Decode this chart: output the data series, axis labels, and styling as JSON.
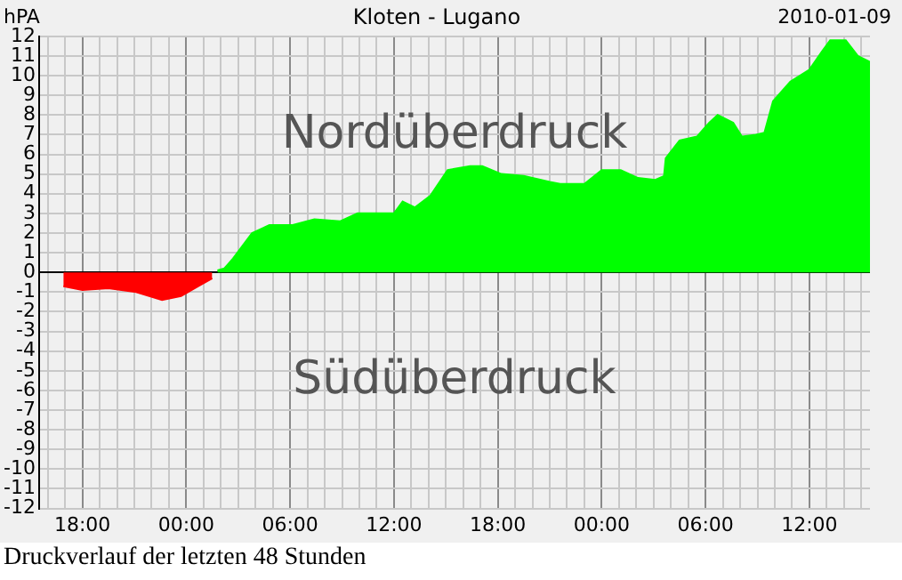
{
  "chart_data": {
    "type": "area",
    "title": "Kloten - Lugano",
    "ylabel": "hPA",
    "annotations": [
      "2010-01-09",
      "Nordüberdruck",
      "Südüberdruck",
      "Druckverlauf der letzten 48 Stunden"
    ],
    "series": [
      {
        "color": "#ff0000",
        "x": [
          "2010-01-07T16:54",
          "2010-01-07T18:00",
          "2010-01-07T19:30",
          "2010-01-07T21:06",
          "2010-01-07T22:36",
          "2010-01-07T23:42",
          "2010-01-08T00:42",
          "2010-01-08T01:30"
        ],
        "values": [
          -0.7,
          -0.9,
          -0.8,
          -1.0,
          -1.4,
          -1.2,
          -0.7,
          -0.3
        ]
      },
      {
        "color": "#00ff00",
        "x": [
          "2010-01-08T01:48",
          "2010-01-08T02:12",
          "2010-01-08T02:42",
          "2010-01-08T03:48",
          "2010-01-08T04:48",
          "2010-01-08T06:06",
          "2010-01-08T07:24",
          "2010-01-08T08:54",
          "2010-01-08T09:54",
          "2010-01-08T12:00",
          "2010-01-08T12:30",
          "2010-01-08T13:12",
          "2010-01-08T14:06",
          "2010-01-08T15:06",
          "2010-01-08T16:24",
          "2010-01-08T17:06",
          "2010-01-08T18:12",
          "2010-01-08T19:30",
          "2010-01-08T21:00",
          "2010-01-08T21:36",
          "2010-01-08T23:00",
          "2010-01-09T00:00",
          "2010-01-09T01:06",
          "2010-01-09T02:06",
          "2010-01-09T03:06",
          "2010-01-09T03:36",
          "2010-01-09T03:42",
          "2010-01-09T04:30",
          "2010-01-09T05:30",
          "2010-01-09T06:12",
          "2010-01-09T06:42",
          "2010-01-09T07:36",
          "2010-01-09T08:06",
          "2010-01-09T08:54",
          "2010-01-09T09:24",
          "2010-01-09T09:54",
          "2010-01-09T10:54",
          "2010-01-09T12:00",
          "2010-01-09T12:42",
          "2010-01-09T13:12",
          "2010-01-09T14:06",
          "2010-01-09T14:48",
          "2010-01-09T15:30"
        ],
        "values": [
          0.1,
          0.2,
          0.7,
          2.0,
          2.4,
          2.4,
          2.7,
          2.6,
          3.0,
          3.0,
          3.6,
          3.3,
          3.9,
          5.2,
          5.4,
          5.4,
          5.0,
          4.9,
          4.6,
          4.5,
          4.5,
          5.2,
          5.2,
          4.8,
          4.7,
          4.9,
          5.8,
          6.7,
          6.9,
          7.6,
          8.0,
          7.6,
          6.9,
          7.0,
          7.1,
          8.7,
          9.7,
          10.3,
          11.2,
          11.8,
          11.8,
          11.0,
          10.7
        ]
      }
    ],
    "xlim": [
      "2010-01-07T15:30",
      "2010-01-09T15:30"
    ],
    "xticks": [
      {
        "value": "2010-01-07T16:00",
        "label": null
      },
      {
        "value": "2010-01-07T17:00",
        "label": null
      },
      {
        "value": "2010-01-07T18:00",
        "label": "18:00"
      },
      {
        "value": "2010-01-07T19:00",
        "label": null
      },
      {
        "value": "2010-01-07T20:00",
        "label": null
      },
      {
        "value": "2010-01-07T21:00",
        "label": null
      },
      {
        "value": "2010-01-07T22:00",
        "label": null
      },
      {
        "value": "2010-01-07T23:00",
        "label": null
      },
      {
        "value": "2010-01-08T00:00",
        "label": "00:00"
      },
      {
        "value": "2010-01-08T01:00",
        "label": null
      },
      {
        "value": "2010-01-08T02:00",
        "label": null
      },
      {
        "value": "2010-01-08T03:00",
        "label": null
      },
      {
        "value": "2010-01-08T04:00",
        "label": null
      },
      {
        "value": "2010-01-08T05:00",
        "label": null
      },
      {
        "value": "2010-01-08T06:00",
        "label": "06:00"
      },
      {
        "value": "2010-01-08T07:00",
        "label": null
      },
      {
        "value": "2010-01-08T08:00",
        "label": null
      },
      {
        "value": "2010-01-08T09:00",
        "label": null
      },
      {
        "value": "2010-01-08T10:00",
        "label": null
      },
      {
        "value": "2010-01-08T11:00",
        "label": null
      },
      {
        "value": "2010-01-08T12:00",
        "label": "12:00"
      },
      {
        "value": "2010-01-08T13:00",
        "label": null
      },
      {
        "value": "2010-01-08T14:00",
        "label": null
      },
      {
        "value": "2010-01-08T15:00",
        "label": null
      },
      {
        "value": "2010-01-08T16:00",
        "label": null
      },
      {
        "value": "2010-01-08T17:00",
        "label": null
      },
      {
        "value": "2010-01-08T18:00",
        "label": "18:00"
      },
      {
        "value": "2010-01-08T19:00",
        "label": null
      },
      {
        "value": "2010-01-08T20:00",
        "label": null
      },
      {
        "value": "2010-01-08T21:00",
        "label": null
      },
      {
        "value": "2010-01-08T22:00",
        "label": null
      },
      {
        "value": "2010-01-08T23:00",
        "label": null
      },
      {
        "value": "2010-01-09T00:00",
        "label": "00:00"
      },
      {
        "value": "2010-01-09T01:00",
        "label": null
      },
      {
        "value": "2010-01-09T02:00",
        "label": null
      },
      {
        "value": "2010-01-09T03:00",
        "label": null
      },
      {
        "value": "2010-01-09T04:00",
        "label": null
      },
      {
        "value": "2010-01-09T05:00",
        "label": null
      },
      {
        "value": "2010-01-09T06:00",
        "label": "06:00"
      },
      {
        "value": "2010-01-09T07:00",
        "label": null
      },
      {
        "value": "2010-01-09T08:00",
        "label": null
      },
      {
        "value": "2010-01-09T09:00",
        "label": null
      },
      {
        "value": "2010-01-09T10:00",
        "label": null
      },
      {
        "value": "2010-01-09T11:00",
        "label": null
      },
      {
        "value": "2010-01-09T12:00",
        "label": "12:00"
      },
      {
        "value": "2010-01-09T13:00",
        "label": null
      },
      {
        "value": "2010-01-09T14:00",
        "label": null
      },
      {
        "value": "2010-01-09T15:00",
        "label": null
      }
    ],
    "ylim": [
      -12,
      12
    ],
    "yticks": [
      -12,
      -11,
      -10,
      -9,
      -8,
      -7,
      -6,
      -5,
      -4,
      -3,
      -2,
      -1,
      0,
      1,
      2,
      3,
      4,
      5,
      6,
      7,
      8,
      9,
      10,
      11,
      12
    ],
    "grid": true,
    "legend": false
  }
}
